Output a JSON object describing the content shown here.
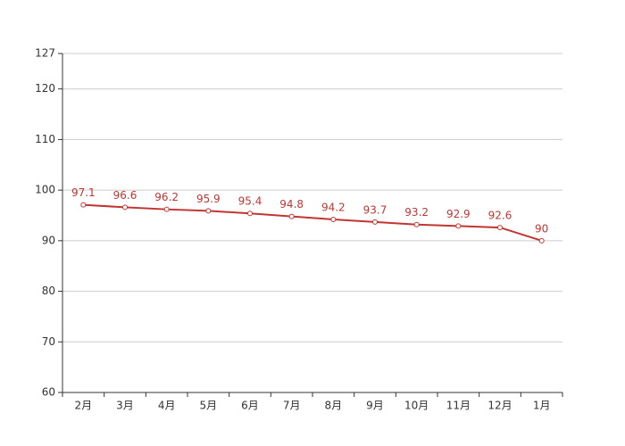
{
  "chart_data": {
    "type": "line",
    "categories": [
      "2月",
      "3月",
      "4月",
      "5月",
      "6月",
      "7月",
      "8月",
      "9月",
      "10月",
      "11月",
      "12月",
      "1月"
    ],
    "values": [
      97.1,
      96.6,
      96.2,
      95.9,
      95.4,
      94.8,
      94.2,
      93.7,
      93.2,
      92.9,
      92.6,
      90
    ],
    "color": "#c23531",
    "ylim": [
      60,
      127
    ],
    "yticks": [
      60,
      70,
      80,
      90,
      100,
      110,
      120,
      127
    ],
    "grid": true
  }
}
